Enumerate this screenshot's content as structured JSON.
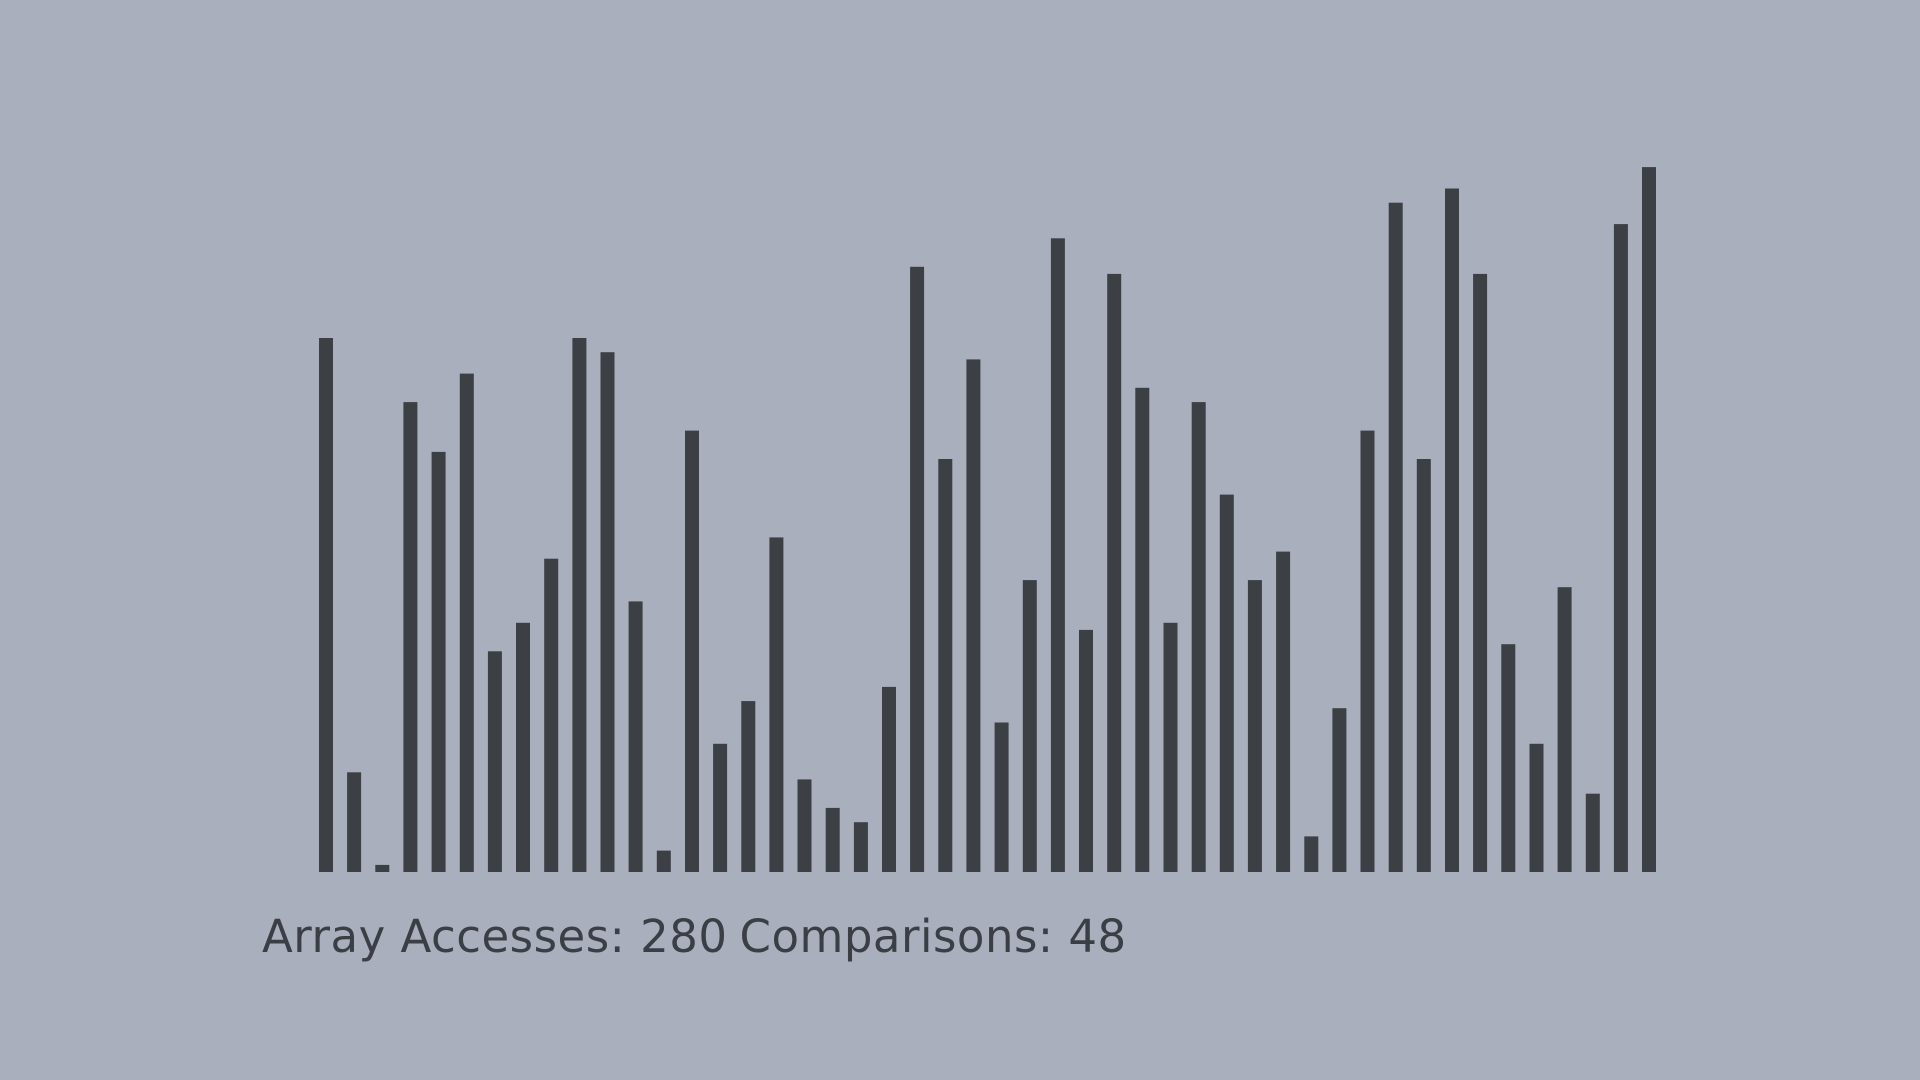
{
  "bar_color": "#3c3f44",
  "background_color": "#a9afbd",
  "chart_data": {
    "type": "bar",
    "title": "",
    "xlabel": "",
    "ylabel": "",
    "ylim": [
      0,
      100
    ],
    "values": [
      75,
      14,
      1,
      66,
      59,
      70,
      31,
      35,
      44,
      75,
      73,
      38,
      3,
      62,
      18,
      24,
      47,
      13,
      9,
      7,
      26,
      85,
      58,
      72,
      21,
      41,
      89,
      34,
      84,
      68,
      35,
      66,
      53,
      41,
      45,
      5,
      23,
      62,
      94,
      58,
      96,
      84,
      32,
      18,
      40,
      11,
      91,
      99
    ]
  },
  "stats": {
    "accesses_label": "Array Accesses: 280",
    "comparisons_label": "Comparisons: 48"
  }
}
